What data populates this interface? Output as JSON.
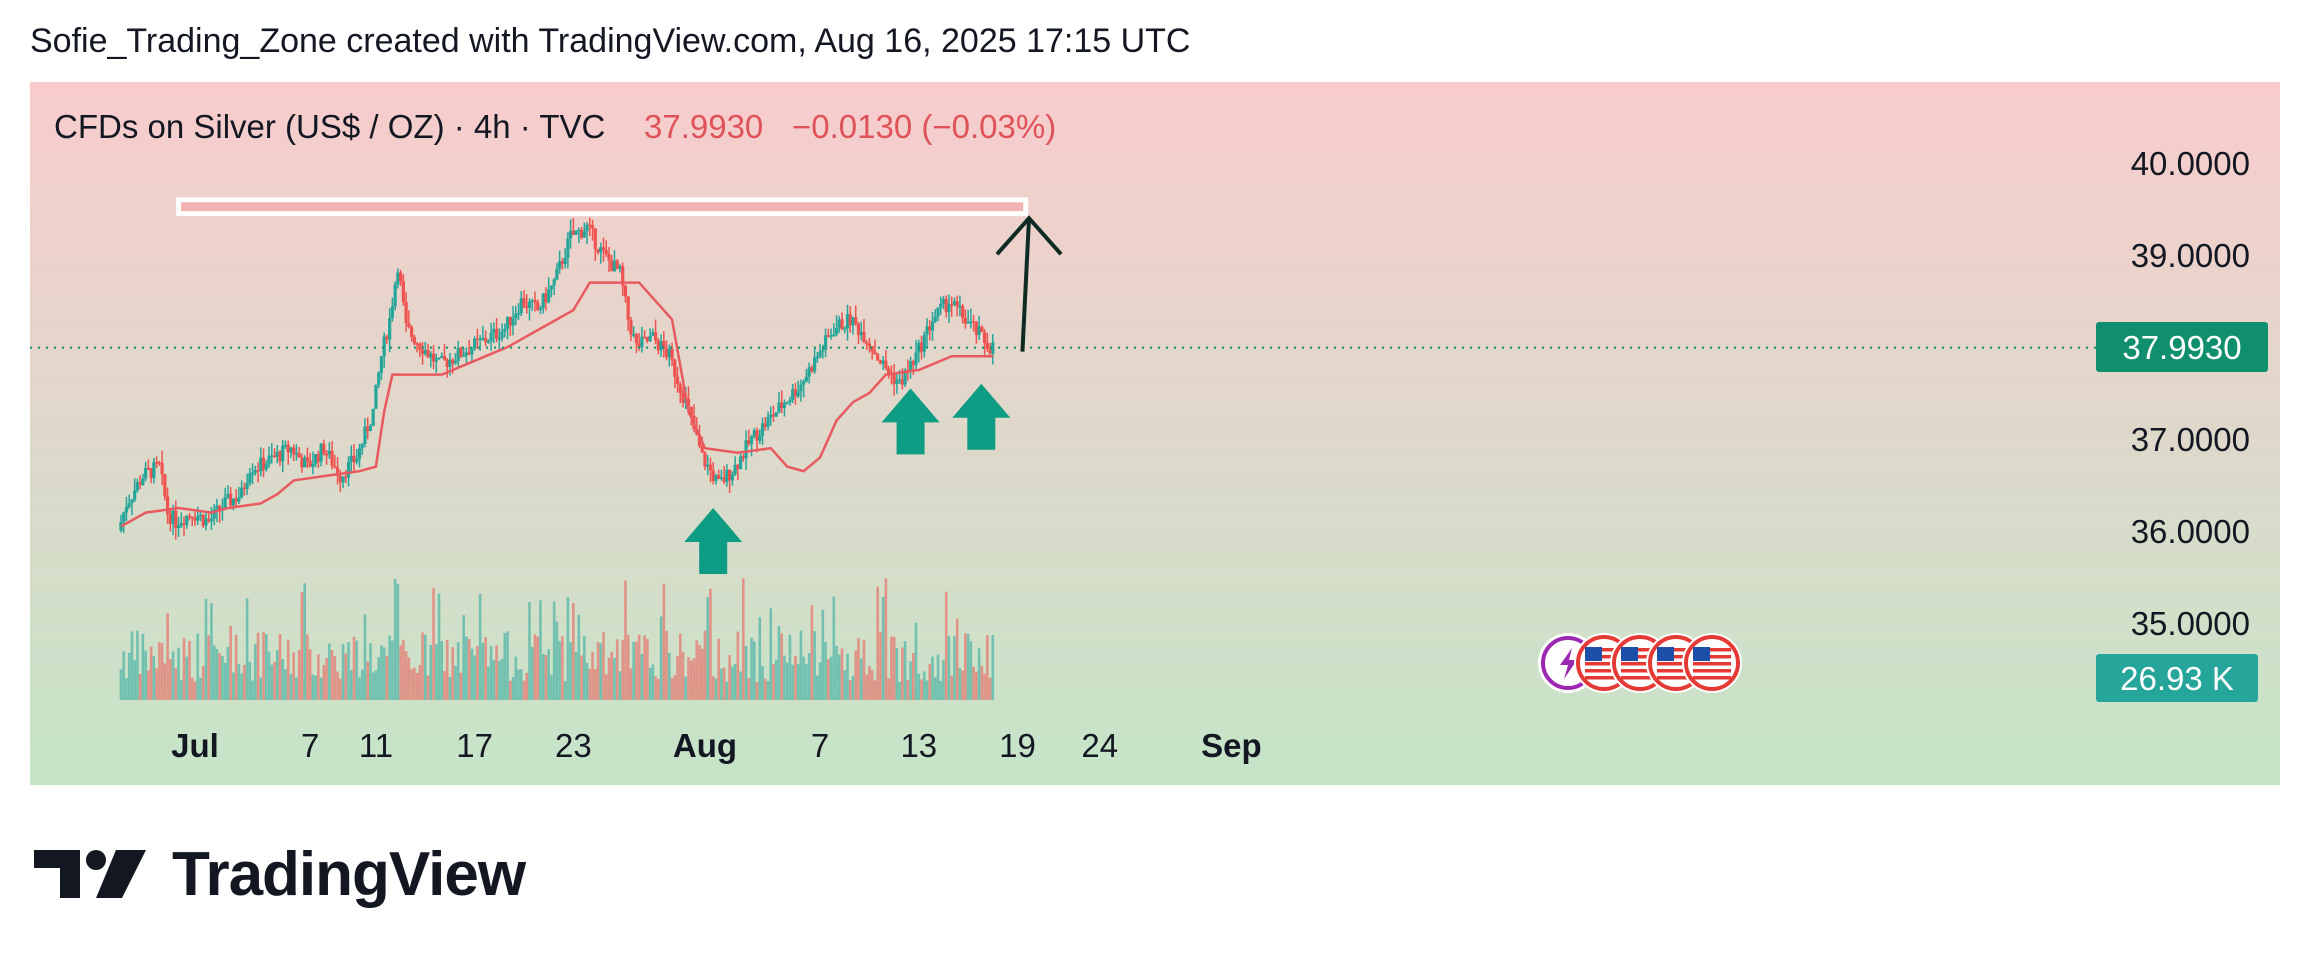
{
  "caption": "Sofie_Trading_Zone created with TradingView.com, Aug 16, 2025 17:15 UTC",
  "brand": "TradingView",
  "chart_data": {
    "type": "candlestick",
    "title": "CFDs on Silver (US$ / OZ) · 4h · TVC",
    "last_price": "37.9930",
    "change": "−0.0130 (−0.03%)",
    "volume_label": "26.93 K",
    "y_ticks": [
      "40.0000",
      "39.0000",
      "37.0000",
      "36.0000",
      "35.0000"
    ],
    "y_tick_values": [
      40,
      39,
      37,
      36,
      35
    ],
    "y_range": [
      34.0,
      40.5
    ],
    "x_ticks": [
      {
        "label": "Jul",
        "day": 0
      },
      {
        "label": "7",
        "day": 7
      },
      {
        "label": "11",
        "day": 11
      },
      {
        "label": "17",
        "day": 17
      },
      {
        "label": "23",
        "day": 23
      },
      {
        "label": "Aug",
        "day": 31
      },
      {
        "label": "7",
        "day": 38
      },
      {
        "label": "13",
        "day": 44
      },
      {
        "label": "19",
        "day": 50
      },
      {
        "label": "24",
        "day": 55
      },
      {
        "label": "Sep",
        "day": 63
      }
    ],
    "price_path": [
      [
        -4.5,
        36.0
      ],
      [
        -4,
        36.3
      ],
      [
        -3,
        36.6
      ],
      [
        -2,
        36.7
      ],
      [
        -1.5,
        36.2
      ],
      [
        -1,
        36.1
      ],
      [
        0,
        36.2
      ],
      [
        1,
        36.1
      ],
      [
        2,
        36.3
      ],
      [
        3,
        36.4
      ],
      [
        3.5,
        36.7
      ],
      [
        4,
        36.7
      ],
      [
        5,
        36.8
      ],
      [
        6,
        36.9
      ],
      [
        7,
        36.7
      ],
      [
        8,
        36.9
      ],
      [
        9,
        36.6
      ],
      [
        10,
        36.8
      ],
      [
        11,
        37.3
      ],
      [
        11.5,
        37.9
      ],
      [
        12,
        38.3
      ],
      [
        12.5,
        38.9
      ],
      [
        13,
        38.2
      ],
      [
        14,
        38.0
      ],
      [
        15,
        37.8
      ],
      [
        16,
        37.9
      ],
      [
        17,
        38.0
      ],
      [
        18,
        38.1
      ],
      [
        19,
        38.2
      ],
      [
        20,
        38.5
      ],
      [
        21,
        38.4
      ],
      [
        22,
        38.7
      ],
      [
        23,
        39.2
      ],
      [
        24,
        39.3
      ],
      [
        25,
        39.0
      ],
      [
        26,
        38.8
      ],
      [
        26.5,
        38.3
      ],
      [
        27,
        38.0
      ],
      [
        28,
        38.1
      ],
      [
        29,
        37.9
      ],
      [
        30,
        37.4
      ],
      [
        31,
        36.8
      ],
      [
        32,
        36.5
      ],
      [
        33,
        36.7
      ],
      [
        34,
        37.0
      ],
      [
        35,
        37.2
      ],
      [
        36,
        37.4
      ],
      [
        37,
        37.6
      ],
      [
        38,
        37.9
      ],
      [
        39,
        38.2
      ],
      [
        40,
        38.3
      ],
      [
        41,
        38.1
      ],
      [
        42,
        37.8
      ],
      [
        43,
        37.6
      ],
      [
        44,
        37.9
      ],
      [
        45,
        38.3
      ],
      [
        46,
        38.5
      ],
      [
        47,
        38.3
      ],
      [
        48,
        38.1
      ],
      [
        48.5,
        38.0
      ]
    ],
    "trailing_stop_path": [
      [
        -4.5,
        36.05
      ],
      [
        -3,
        36.2
      ],
      [
        -1,
        36.25
      ],
      [
        1,
        36.2
      ],
      [
        2,
        36.25
      ],
      [
        4,
        36.3
      ],
      [
        5,
        36.4
      ],
      [
        6,
        36.55
      ],
      [
        8,
        36.6
      ],
      [
        10,
        36.65
      ],
      [
        11,
        36.7
      ],
      [
        11.5,
        37.3
      ],
      [
        12,
        37.7
      ],
      [
        15,
        37.7
      ],
      [
        17,
        37.85
      ],
      [
        19,
        38.0
      ],
      [
        20,
        38.1
      ],
      [
        22,
        38.3
      ],
      [
        23,
        38.4
      ],
      [
        24,
        38.7
      ],
      [
        27,
        38.7
      ],
      [
        29,
        38.3
      ],
      [
        30,
        37.3
      ],
      [
        31,
        36.9
      ],
      [
        33,
        36.85
      ],
      [
        35,
        36.9
      ],
      [
        36,
        36.7
      ],
      [
        37,
        36.65
      ],
      [
        38,
        36.8
      ],
      [
        39,
        37.2
      ],
      [
        40,
        37.4
      ],
      [
        41,
        37.5
      ],
      [
        42,
        37.7
      ],
      [
        44,
        37.75
      ],
      [
        46,
        37.9
      ],
      [
        48.5,
        37.9
      ]
    ],
    "resistance_zone": {
      "day_start": -1,
      "day_end": 50.5,
      "high": 39.6,
      "low": 39.45
    },
    "projection_arrow": {
      "from_day": 50.3,
      "from_price": 37.95,
      "to_day": 50.7,
      "to_price": 39.4
    },
    "support_arrows": [
      {
        "day": 31.5,
        "price": 36.25
      },
      {
        "day": 43.5,
        "price": 37.55
      },
      {
        "day": 47.8,
        "price": 37.6
      }
    ],
    "event_icons": [
      "lightning-icon",
      "us-flag-icon",
      "us-flag-icon",
      "us-flag-icon",
      "us-flag-icon"
    ],
    "colors": {
      "up": "#26a69a",
      "down": "#ef5350",
      "trailing_line": "#e85a60",
      "arrow_green": "#0e9c85",
      "price_badge": "#0f8f6e",
      "volume_badge": "#26a69a",
      "title_values": "#e0525a",
      "bg_top": "#f8cccc",
      "bg_bottom": "#c5e5c8",
      "resistance_fill": "#f2b2b2"
    }
  }
}
